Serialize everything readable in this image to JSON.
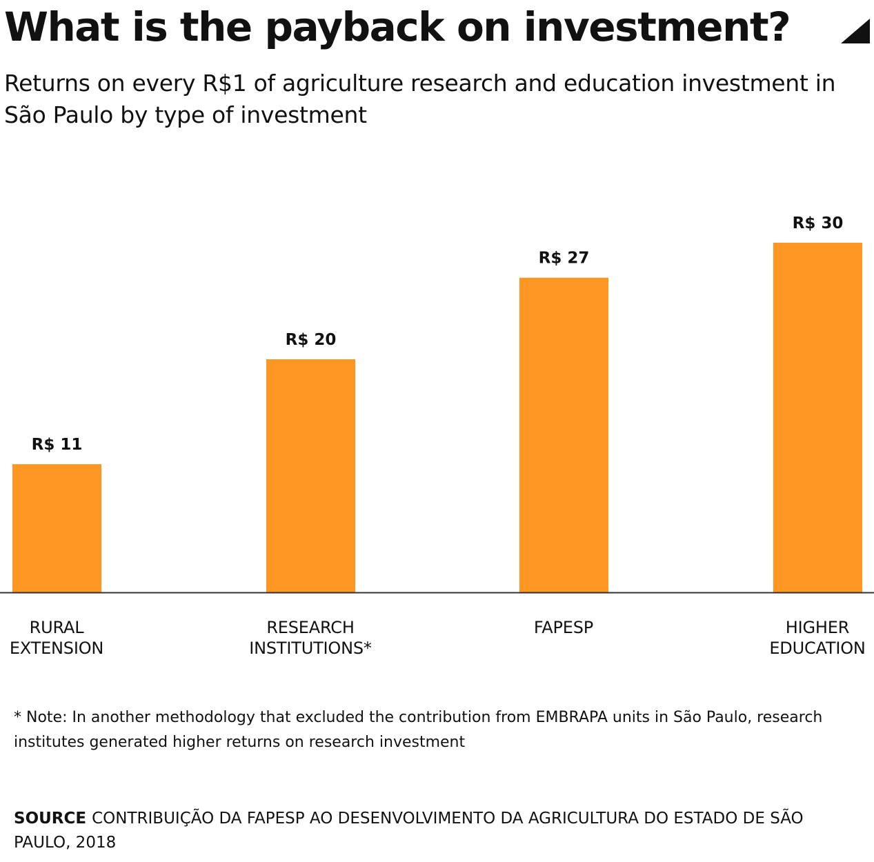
{
  "header": {
    "title": "What is the payback on investment?",
    "subtitle": "Returns on every R$1 of agriculture research and education investment in São Paulo by type of investment",
    "corner_icon": "corner-triangle-icon"
  },
  "chart_data": {
    "type": "bar",
    "categories": [
      "RURAL\nEXTENSION",
      "RESEARCH\nINSTITUTIONS*",
      "FAPESP",
      "HIGHER\nEDUCATION"
    ],
    "values": [
      11,
      20,
      27,
      30
    ],
    "value_labels": [
      "R$ 11",
      "R$ 20",
      "R$ 27",
      "R$ 30"
    ],
    "title": "",
    "xlabel": "",
    "ylabel": "",
    "ylim": [
      0,
      30
    ],
    "grid": false,
    "legend": "none"
  },
  "footer": {
    "note": "* Note: In another methodology that excluded the contribution from EMBRAPA units in São Paulo, research institutes generated higher returns on research investment",
    "source_label": "SOURCE",
    "source_text": "CONTRIBUIÇÃO DA FAPESP AO DESENVOLVIMENTO DA AGRICULTURA DO ESTADO DE SÃO PAULO, 2018"
  },
  "colors": {
    "bar": "#fd9623",
    "text": "#111111",
    "axis": "#333333",
    "background": "#ffffff"
  }
}
